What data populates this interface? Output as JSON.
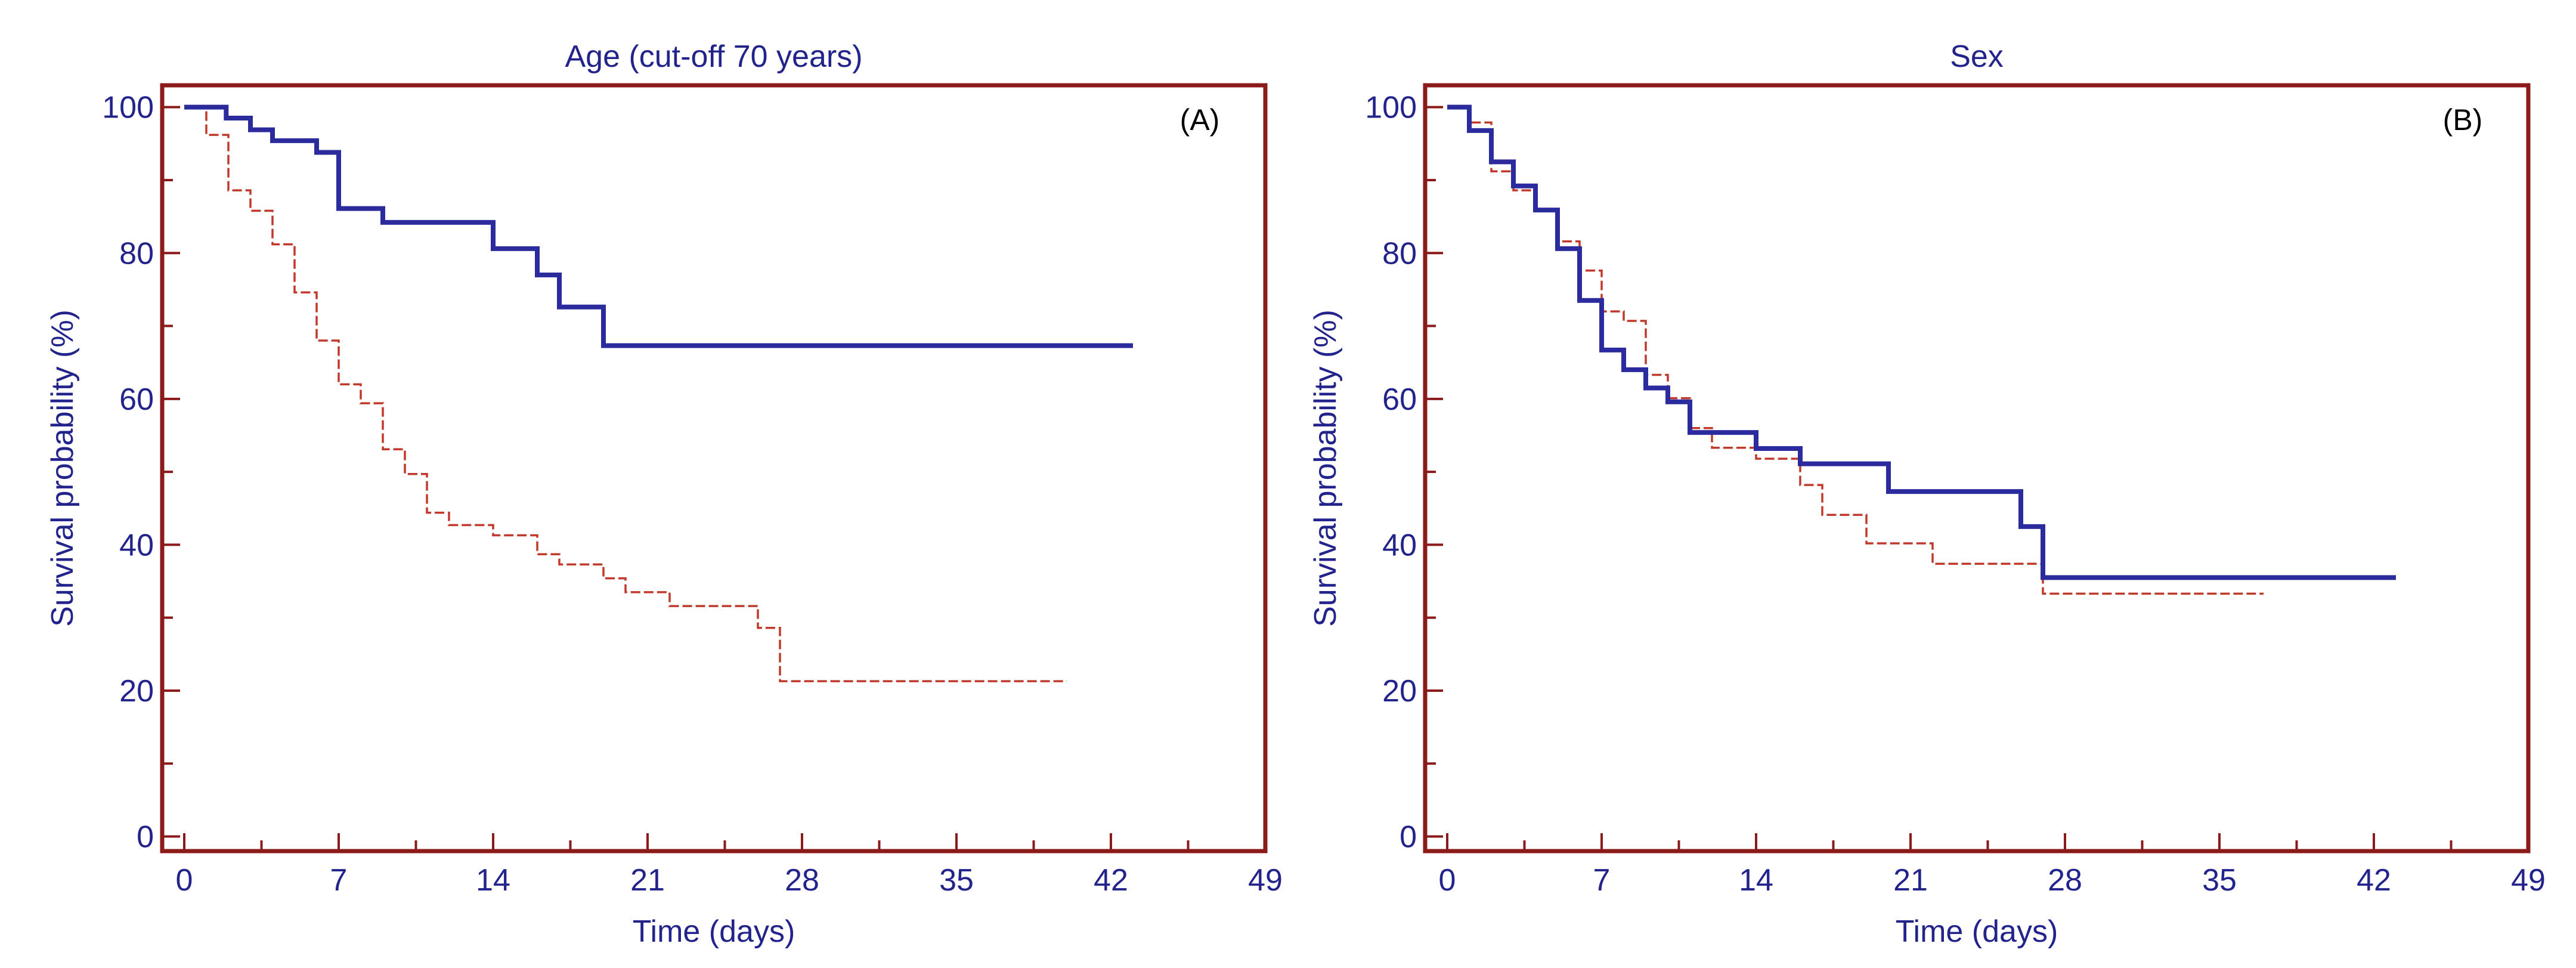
{
  "colors": {
    "frame": "#8b1a1a",
    "text": "#23238c",
    "series_a": "#2b2b9e",
    "series_b": "#c0392b"
  },
  "chart_data": [
    {
      "type": "line",
      "step": true,
      "title": "Age (cut-off 70 years)",
      "panel_label": "(A)",
      "xlabel": "Time (days)",
      "ylabel": "Survival probability (%)",
      "xlim": [
        -1,
        49
      ],
      "ylim": [
        -2,
        103
      ],
      "xticks": [
        0,
        7,
        14,
        21,
        28,
        35,
        42,
        49
      ],
      "yticks": [
        0,
        20,
        40,
        60,
        80,
        100
      ],
      "grid": false,
      "series": [
        {
          "style": "solid",
          "color": "#2b2b9e",
          "x": [
            0,
            1.9,
            3,
            4,
            6,
            7,
            9,
            14,
            16,
            17,
            19,
            43
          ],
          "y": [
            100,
            98.5,
            96.9,
            95.4,
            93.8,
            86.1,
            84.2,
            80.6,
            77,
            72.6,
            67.3,
            67.3
          ]
        },
        {
          "style": "dashed",
          "color": "#c0392b",
          "x": [
            0,
            1,
            2,
            3,
            4,
            5,
            6,
            7,
            8,
            9,
            10,
            11,
            12,
            14,
            16,
            17,
            19,
            20,
            22,
            26,
            27,
            40
          ],
          "y": [
            100,
            96.2,
            88.6,
            85.8,
            81.2,
            74.6,
            68,
            62,
            59.4,
            53.1,
            49.7,
            44.4,
            42.7,
            41.3,
            38.7,
            37.3,
            35.4,
            33.5,
            31.6,
            28.6,
            21.3,
            21.3
          ]
        }
      ]
    },
    {
      "type": "line",
      "step": true,
      "title": "Sex",
      "panel_label": "(B)",
      "xlabel": "Time (days)",
      "ylabel": "Survival probability (%)",
      "xlim": [
        -1,
        49
      ],
      "ylim": [
        -2,
        103
      ],
      "xticks": [
        0,
        7,
        14,
        21,
        28,
        35,
        42,
        49
      ],
      "yticks": [
        0,
        20,
        40,
        60,
        80,
        100
      ],
      "grid": false,
      "series": [
        {
          "style": "solid",
          "color": "#2b2b9e",
          "x": [
            0,
            1,
            2,
            3,
            4,
            5,
            6,
            7,
            8,
            9,
            10,
            11,
            14,
            16,
            20,
            26,
            27,
            43
          ],
          "y": [
            100,
            96.8,
            92.5,
            89.2,
            85.9,
            80.6,
            73.5,
            66.7,
            64,
            61.5,
            59.6,
            55.4,
            53.2,
            51.1,
            47.3,
            42.5,
            35.5,
            35.5
          ]
        },
        {
          "style": "dashed",
          "color": "#c0392b",
          "x": [
            0,
            1,
            2,
            3,
            4,
            5,
            6,
            7,
            8,
            9,
            10,
            11,
            12,
            14,
            16,
            17,
            19,
            22,
            27,
            37
          ],
          "y": [
            100,
            97.9,
            91.2,
            88.6,
            85.9,
            81.6,
            77.6,
            72,
            70.7,
            63.3,
            60.1,
            56,
            53.3,
            51.8,
            48.2,
            44.1,
            40.2,
            37.4,
            33.3,
            33.3
          ]
        }
      ]
    }
  ]
}
